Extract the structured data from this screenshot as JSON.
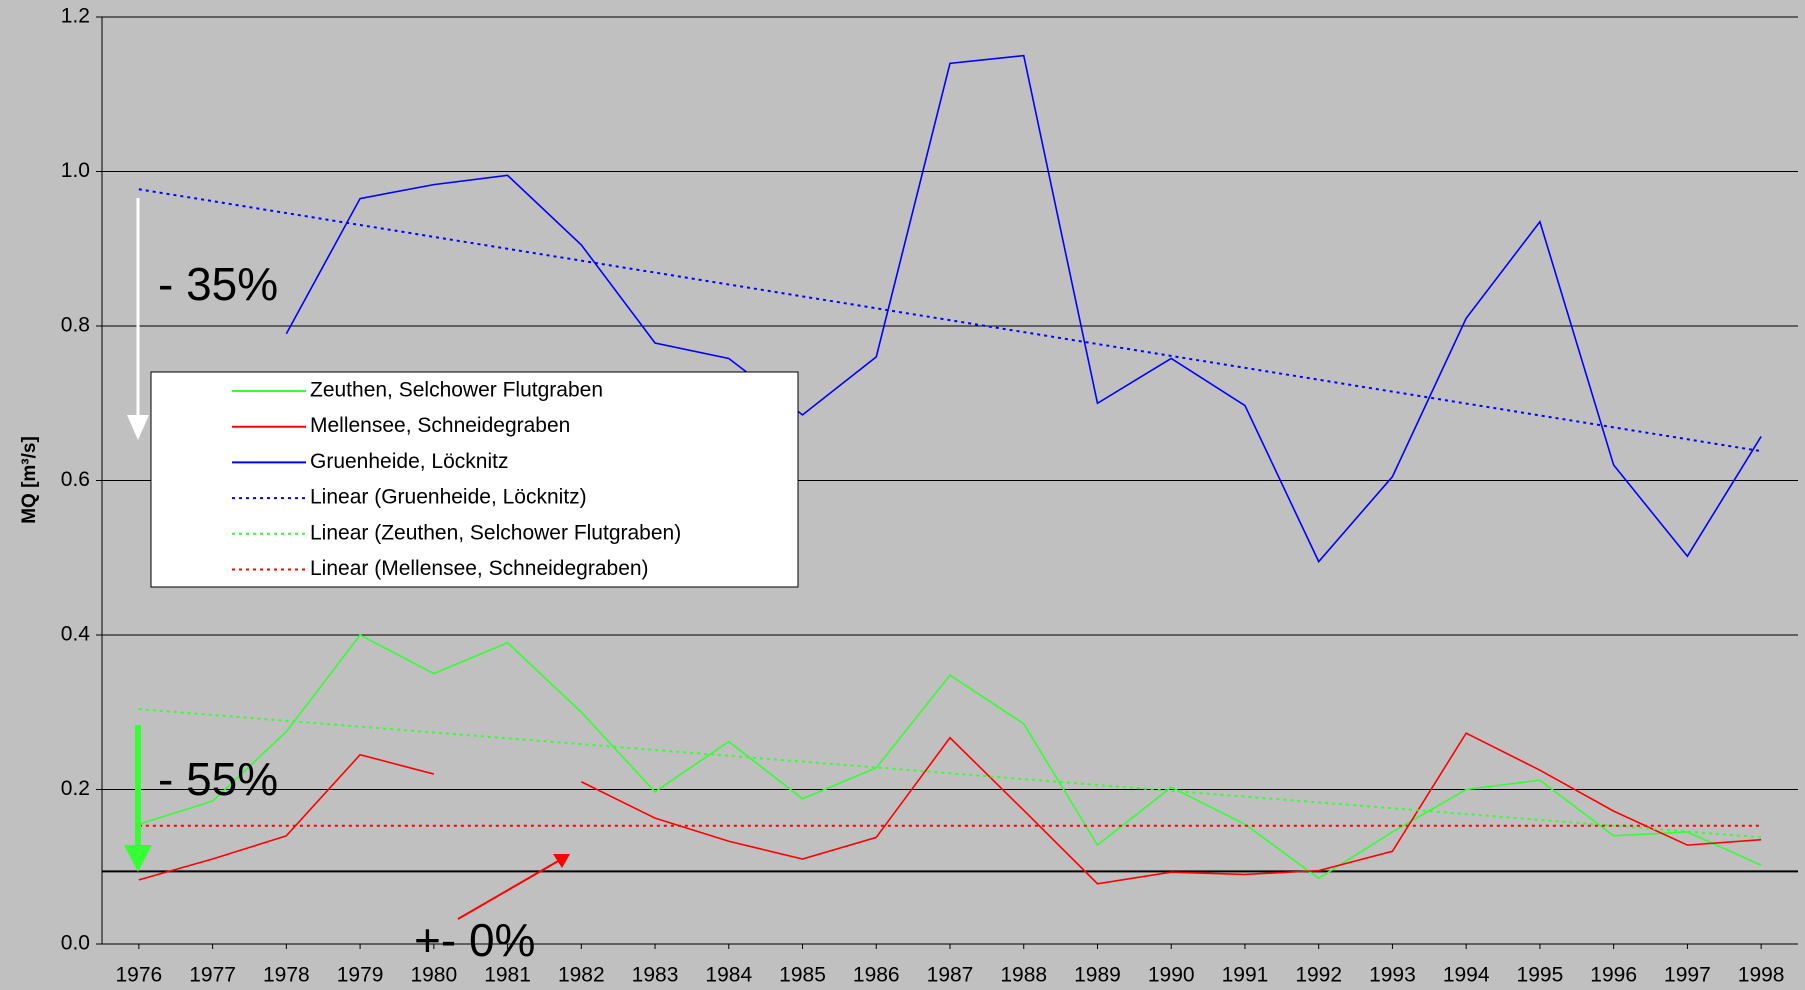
{
  "chart_data": {
    "type": "line",
    "y_label": "MQ [m³/s]",
    "x": [
      1976,
      1977,
      1978,
      1979,
      1980,
      1981,
      1982,
      1983,
      1984,
      1985,
      1986,
      1987,
      1988,
      1989,
      1990,
      1991,
      1992,
      1993,
      1994,
      1995,
      1996,
      1997,
      1998
    ],
    "xlim": [
      1975.5,
      1998.5
    ],
    "xticks": [
      1976,
      1977,
      1978,
      1979,
      1980,
      1981,
      1982,
      1983,
      1984,
      1985,
      1986,
      1987,
      1988,
      1989,
      1990,
      1991,
      1992,
      1993,
      1994,
      1995,
      1996,
      1997,
      1998
    ],
    "ylim": [
      0,
      1.2
    ],
    "yticks": [
      {
        "value": 0,
        "label": "0.0"
      },
      0.2,
      0.4,
      0.6,
      0.8,
      {
        "value": 1,
        "label": "1.0"
      },
      1.2
    ],
    "grid": true,
    "series": [
      {
        "name": "Zeuthen, Selchower Flutgraben",
        "color": "#33ff33",
        "values": [
          0.155,
          0.185,
          0.275,
          0.4,
          0.35,
          0.39,
          0.3,
          0.197,
          0.262,
          0.188,
          0.228,
          0.348,
          0.285,
          0.128,
          0.203,
          0.155,
          0.085,
          0.145,
          0.2,
          0.212,
          0.14,
          0.145,
          0.102
        ]
      },
      {
        "name": "Mellensee, Schneidegraben",
        "color": "#ff0000",
        "values": [
          0.083,
          0.11,
          0.14,
          0.245,
          0.22,
          null,
          0.21,
          0.163,
          0.133,
          0.11,
          0.138,
          0.267,
          0.173,
          0.078,
          0.093,
          0.09,
          0.095,
          0.12,
          0.273,
          0.225,
          0.172,
          0.128,
          0.135
        ]
      },
      {
        "name": "Gruenheide, Löcknitz",
        "color": "#0000ff",
        "values": [
          null,
          null,
          0.79,
          0.965,
          0.983,
          0.995,
          0.905,
          0.778,
          0.758,
          0.685,
          0.76,
          1.14,
          1.15,
          0.7,
          0.758,
          0.697,
          0.495,
          0.605,
          0.81,
          0.935,
          0.62,
          0.502,
          0.657
        ]
      },
      {
        "name": "Linear (Gruenheide, Löcknitz)",
        "color": "#0000ff",
        "dashed": true,
        "x": [
          1976,
          1998
        ],
        "values": [
          0.977,
          0.638
        ]
      },
      {
        "name": "Linear (Zeuthen, Selchower Flutgraben)",
        "color": "#33ff33",
        "dashed": true,
        "x": [
          1976,
          1998
        ],
        "values": [
          0.304,
          0.138
        ]
      },
      {
        "name": "Linear (Mellensee, Schneidegraben)",
        "color": "#ff0000",
        "dashed": true,
        "x": [
          1976,
          1998
        ],
        "values": [
          0.153,
          0.153
        ]
      }
    ],
    "reference_line": {
      "value": 0.094,
      "color": "#000000"
    },
    "annotations": [
      {
        "text": "- 35%",
        "color": "#ffffff"
      },
      {
        "text": "- 55%",
        "color": "#33ff33"
      },
      {
        "text": "+- 0%",
        "color": "#ff3399"
      }
    ]
  }
}
